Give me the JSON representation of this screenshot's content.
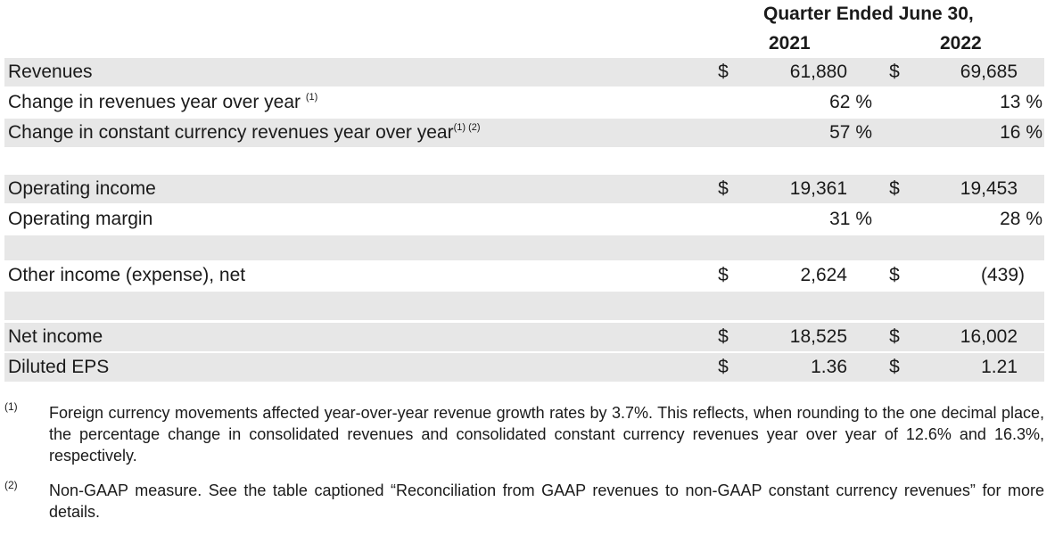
{
  "header": {
    "title": "Quarter Ended June 30,",
    "year_1": "2021",
    "year_2": "2022"
  },
  "rows": {
    "revenues": {
      "label": "Revenues",
      "cur_1": "$",
      "val_1": "61,880",
      "cur_2": "$",
      "val_2": "69,685"
    },
    "rev_change": {
      "label": "Change in revenues year over year",
      "note": "(1)",
      "val_1": "62 %",
      "val_2": "13 %"
    },
    "cc_change": {
      "label": "Change in constant currency revenues year over year",
      "note": "(1) (2)",
      "val_1": "57 %",
      "val_2": "16 %"
    },
    "op_income": {
      "label": "Operating income",
      "cur_1": "$",
      "val_1": "19,361",
      "cur_2": "$",
      "val_2": "19,453"
    },
    "op_margin": {
      "label": "Operating margin",
      "val_1": "31 %",
      "val_2": "28 %"
    },
    "other_income": {
      "label": "Other income (expense), net",
      "cur_1": "$",
      "val_1": "2,624",
      "cur_2": "$",
      "val_2": "(439)"
    },
    "net_income": {
      "label": "Net income",
      "cur_1": "$",
      "val_1": "18,525",
      "cur_2": "$",
      "val_2": "16,002"
    },
    "eps": {
      "label": "Diluted EPS",
      "cur_1": "$",
      "val_1": "1.36",
      "cur_2": "$",
      "val_2": "1.21"
    }
  },
  "footnotes": {
    "fn1": {
      "mark": "(1)",
      "text": "Foreign currency movements affected year-over-year revenue growth rates by 3.7%. This reflects, when rounding to the one decimal place, the percentage change in consolidated revenues and consolidated constant currency revenues year over year of 12.6% and 16.3%, respectively."
    },
    "fn2": {
      "mark": "(2)",
      "text": "Non-GAAP measure. See the table captioned “Reconciliation from GAAP revenues to non-GAAP constant currency revenues” for more details."
    }
  },
  "colors": {
    "row_shade": "#e7e7e7",
    "text": "#1a1a1a"
  }
}
